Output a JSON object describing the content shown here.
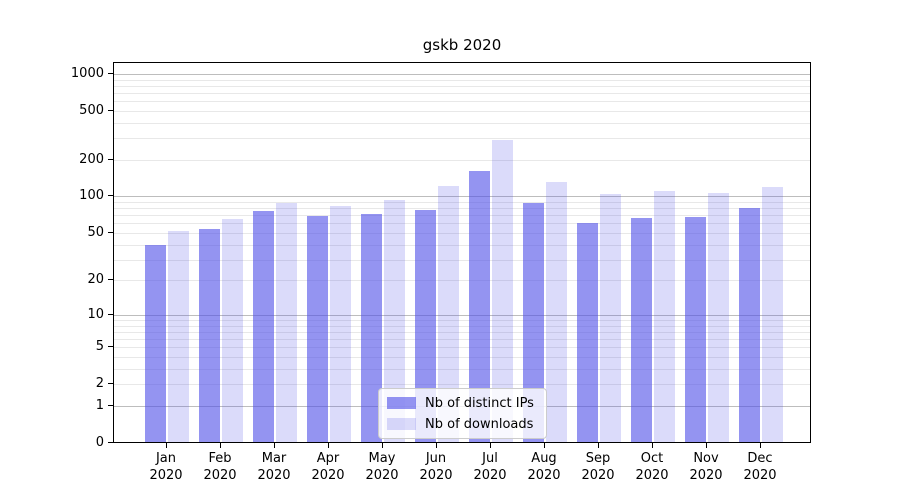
{
  "figure": {
    "title": "gskb 2020"
  },
  "chart_data": {
    "type": "bar",
    "title": "gskb 2020",
    "xlabel": "",
    "ylabel": "",
    "yscale": "log1p",
    "ylim": [
      0,
      1252
    ],
    "grid": "on",
    "legend_position": "lower center",
    "categories": [
      "Jan",
      "Feb",
      "Mar",
      "Apr",
      "May",
      "Jun",
      "Jul",
      "Aug",
      "Sep",
      "Oct",
      "Nov",
      "Dec"
    ],
    "category_year": "2020",
    "yticks": [
      0,
      1,
      2,
      5,
      10,
      20,
      50,
      100,
      200,
      500,
      1000
    ],
    "major_grid_values": [
      1,
      10,
      100,
      1000
    ],
    "series": [
      {
        "name": "Nb of distinct IPs",
        "color": "rgba(77,77,232,0.6)",
        "values": [
          40,
          54,
          76,
          69,
          72,
          78,
          162,
          88,
          60,
          66,
          68,
          80
        ]
      },
      {
        "name": "Nb of downloads",
        "color": "rgba(77,77,232,0.2)",
        "values": [
          52,
          65,
          88,
          84,
          94,
          122,
          290,
          131,
          104,
          111,
          107,
          119
        ]
      }
    ],
    "colors": {
      "major_gridline": "#bdbdbd",
      "minor_gridline": "#e8e8e8",
      "spine": "#000000",
      "text": "#000000",
      "legend_border": "#cccccc"
    }
  }
}
